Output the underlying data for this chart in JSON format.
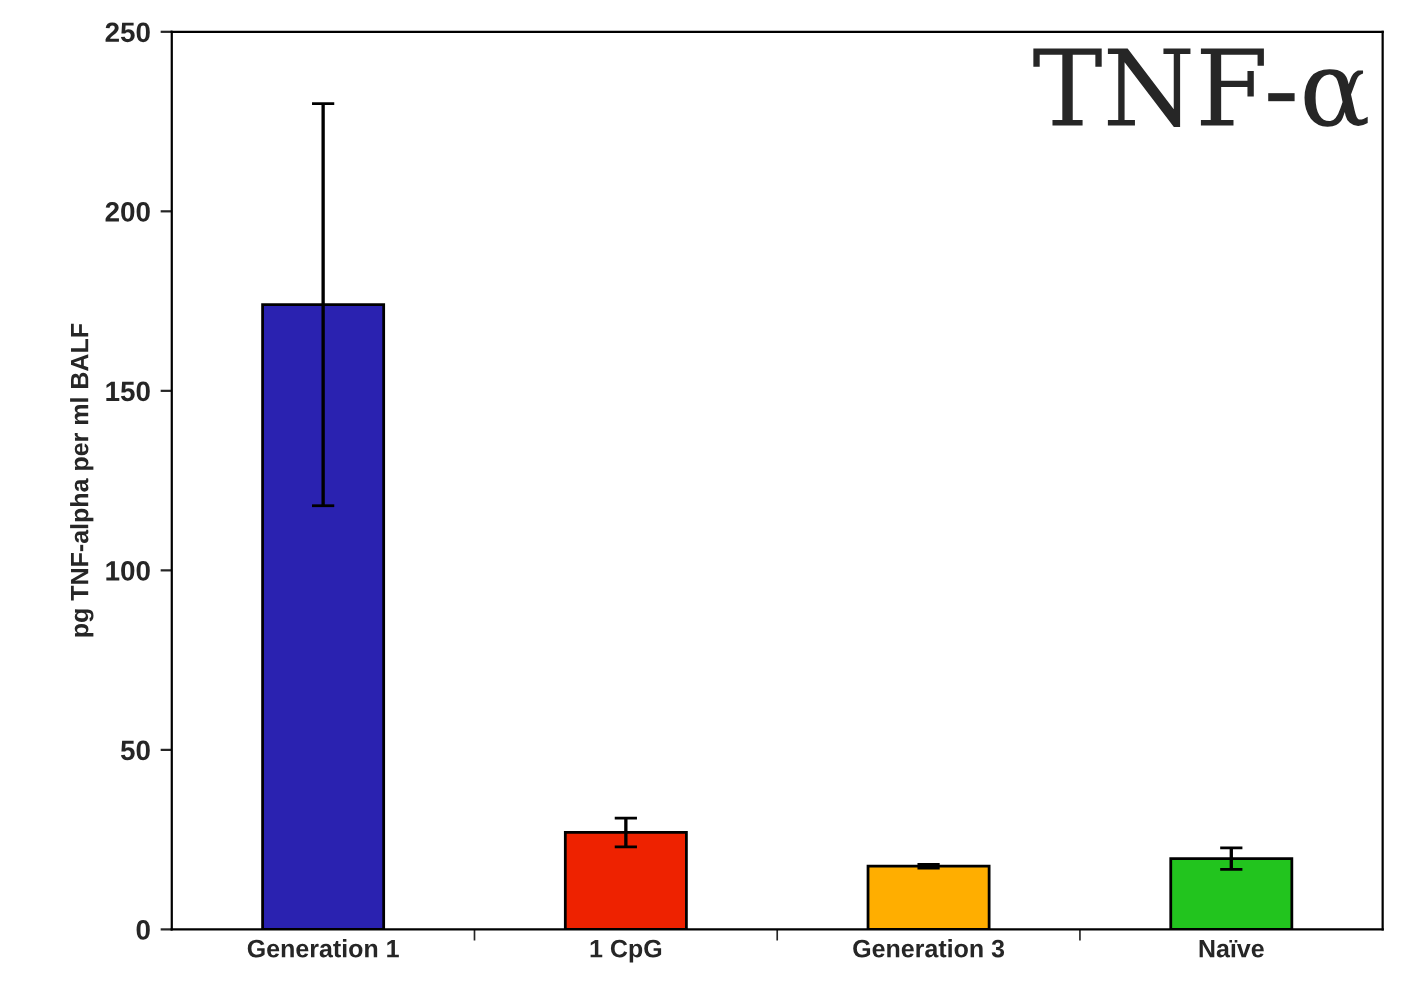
{
  "chart_data": {
    "type": "bar",
    "title": "TNF-α",
    "ylabel": "pg TNF-alpha per ml BALF",
    "categories": [
      "Generation 1",
      "1 CpG",
      "Generation 3",
      "Naïve"
    ],
    "values": [
      174,
      27,
      17.6,
      19.7
    ],
    "errors": [
      56,
      4,
      0.5,
      3
    ],
    "colors": [
      "#2a22b0",
      "#ee2200",
      "#ffae00",
      "#22c41e"
    ],
    "ylim": [
      0,
      250
    ],
    "yticks": [
      0,
      50,
      100,
      150,
      200,
      250
    ],
    "grid": false
  }
}
